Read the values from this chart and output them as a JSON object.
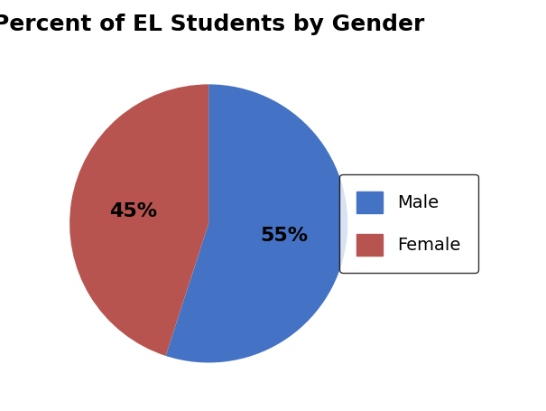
{
  "title": "Percent of EL Students by Gender",
  "labels": [
    "Male",
    "Female"
  ],
  "values": [
    55,
    45
  ],
  "colors": [
    "#4472C4",
    "#B85450"
  ],
  "autopct_labels": [
    "55%",
    "45%"
  ],
  "startangle": 90,
  "legend_labels": [
    "Male",
    "Female"
  ],
  "title_fontsize": 18,
  "label_fontsize": 16,
  "legend_fontsize": 14,
  "background_color": "#ffffff",
  "text_color": "#000000"
}
